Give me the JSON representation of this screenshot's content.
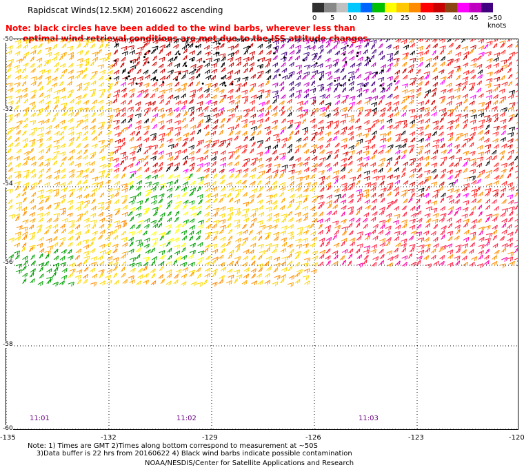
{
  "title": "Rapidscat Winds(12.5KM) 20160622 ascending",
  "legend": {
    "ticks": [
      "0",
      "5",
      "10",
      "15",
      "20",
      "25",
      "30",
      "35",
      "40",
      "45",
      ">50 knots"
    ],
    "colors": [
      "#303030",
      "#888888",
      "#c0c0c0",
      "#00c8ff",
      "#0064ff",
      "#00c000",
      "#ffff00",
      "#ffc800",
      "#ff8c00",
      "#ff0000",
      "#c80000",
      "#8b4513",
      "#ff00ff",
      "#c000c0",
      "#400080"
    ]
  },
  "note": {
    "line1": "Note: black circles have been added to the wind barbs, wherever less than",
    "line2": "      optimal wind retrieval conditions are met due to the ISS attitude changes."
  },
  "axes": {
    "lat_labels": [
      "-50",
      "-52",
      "-54",
      "-56",
      "-58",
      "-60"
    ],
    "lon_labels": [
      "-135",
      "-132",
      "-129",
      "-126",
      "-123",
      "-120"
    ]
  },
  "time_labels": [
    "11:01",
    "11:02",
    "11:03"
  ],
  "footnote": {
    "line1": "Note: 1) Times are GMT 2)Times along bottom correspond to measurement at ~50S",
    "line2": "    3)Data buffer is 22 hrs from 20160622 4) Black wind barbs indicate possible contamination"
  },
  "credit": "NOAA/NESDIS/Center for Satellite Applications and Research"
}
